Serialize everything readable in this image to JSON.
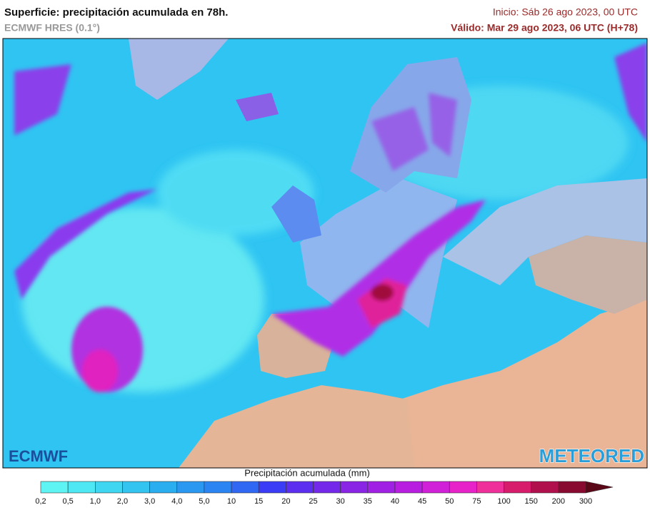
{
  "header": {
    "title": "Superficie: precipitación acumulada en 78h.",
    "subtitle": "ECMWF HRES (0.1°)",
    "init": "Inicio: Sáb 26 ago 2023, 00 UTC",
    "valid": "Válido: Mar 29 ago 2023, 06 UTC (H+78)"
  },
  "logos": {
    "left": "ECMWF",
    "right": "METEORED"
  },
  "legend": {
    "title": "Precipitación acumulada (mm)",
    "labels": [
      "0,2",
      "0,5",
      "1,0",
      "2,0",
      "3,0",
      "4,0",
      "5,0",
      "10",
      "15",
      "20",
      "25",
      "30",
      "35",
      "40",
      "45",
      "50",
      "75",
      "100",
      "150",
      "200",
      "300"
    ],
    "colors": [
      "#5ff4f4",
      "#4ee8f4",
      "#3fd6f2",
      "#33c4f0",
      "#2aaef0",
      "#2a98f0",
      "#2a84f2",
      "#3068f4",
      "#3a3cf6",
      "#5c2ef0",
      "#7429ea",
      "#8a25e6",
      "#a020e4",
      "#b81ee0",
      "#d020d8",
      "#e622c8",
      "#f0309a",
      "#d81c6c",
      "#b0104c",
      "#880a30",
      "#5a0818"
    ]
  }
}
